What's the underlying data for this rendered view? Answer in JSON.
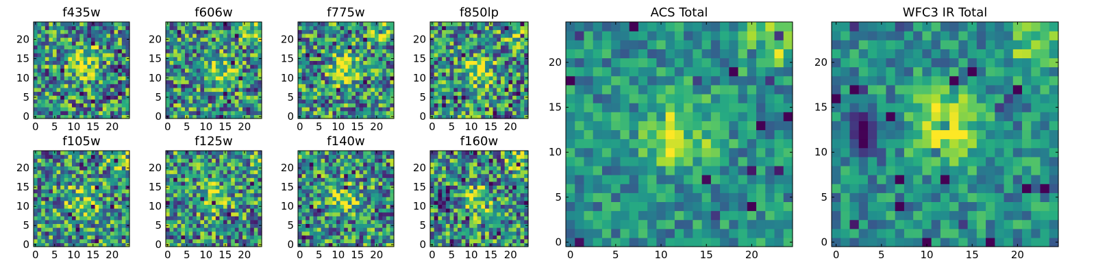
{
  "chart_data": {
    "type": "heatmap",
    "colormap": "viridis",
    "grid_size": 25,
    "panels": [
      {
        "title": "f435w",
        "xticks": [
          "0",
          "5",
          "10",
          "15",
          "20"
        ],
        "yticks": [
          "0",
          "5",
          "10",
          "15",
          "20"
        ],
        "xlim": [
          0,
          24
        ],
        "ylim": [
          0,
          24
        ],
        "center": [
          13,
          14
        ],
        "bright_corner": "none",
        "dark_patch": "none"
      },
      {
        "title": "f606w",
        "xticks": [
          "0",
          "5",
          "10",
          "15",
          "20"
        ],
        "yticks": [
          "0",
          "5",
          "10",
          "15",
          "20"
        ],
        "xlim": [
          0,
          24
        ],
        "ylim": [
          0,
          24
        ],
        "center": [
          13,
          12
        ],
        "bright_corner": "top-right",
        "dark_patch": "none"
      },
      {
        "title": "f775w",
        "xticks": [
          "0",
          "5",
          "10",
          "15",
          "20"
        ],
        "yticks": [
          "0",
          "5",
          "10",
          "15",
          "20"
        ],
        "xlim": [
          0,
          24
        ],
        "ylim": [
          0,
          24
        ],
        "center": [
          12,
          12
        ],
        "bright_corner": "top-right",
        "dark_patch": "none"
      },
      {
        "title": "f850lp",
        "xticks": [
          "0",
          "5",
          "10",
          "15",
          "20"
        ],
        "yticks": [
          "0",
          "5",
          "10",
          "15",
          "20"
        ],
        "xlim": [
          0,
          24
        ],
        "ylim": [
          0,
          24
        ],
        "center": [
          12,
          12
        ],
        "bright_corner": "top-right",
        "dark_patch": "none"
      },
      {
        "title": "ACS Total",
        "xticks": [
          "0",
          "5",
          "10",
          "15",
          "20"
        ],
        "yticks": [
          "0",
          "5",
          "10",
          "15",
          "20"
        ],
        "xlim": [
          0,
          24
        ],
        "ylim": [
          0,
          24
        ],
        "center": [
          12,
          12
        ],
        "bright_corner": "top-right",
        "dark_patch": "none"
      },
      {
        "title": "f105w",
        "xticks": [
          "0",
          "5",
          "10",
          "15",
          "20"
        ],
        "yticks": [
          "0",
          "5",
          "10",
          "15",
          "20"
        ],
        "xlim": [
          0,
          24
        ],
        "ylim": [
          0,
          24
        ],
        "center": [
          12,
          11
        ],
        "bright_corner": "top-right",
        "dark_patch": "none"
      },
      {
        "title": "f125w",
        "xticks": [
          "0",
          "5",
          "10",
          "15",
          "20"
        ],
        "yticks": [
          "0",
          "5",
          "10",
          "15",
          "20"
        ],
        "xlim": [
          0,
          24
        ],
        "ylim": [
          0,
          24
        ],
        "center": [
          12,
          12
        ],
        "bright_corner": "top-right",
        "dark_patch": "none"
      },
      {
        "title": "f140w",
        "xticks": [
          "0",
          "5",
          "10",
          "15",
          "20"
        ],
        "yticks": [
          "0",
          "5",
          "10",
          "15",
          "20"
        ],
        "xlim": [
          0,
          24
        ],
        "ylim": [
          0,
          24
        ],
        "center": [
          12,
          12
        ],
        "bright_corner": "none",
        "dark_patch": "none"
      },
      {
        "title": "f160w",
        "xticks": [
          "0",
          "5",
          "10",
          "15",
          "20"
        ],
        "yticks": [
          "0",
          "5",
          "10",
          "15",
          "20"
        ],
        "xlim": [
          0,
          24
        ],
        "ylim": [
          0,
          24
        ],
        "center": [
          11,
          12
        ],
        "bright_corner": "top-right",
        "dark_patch": "left"
      },
      {
        "title": "WFC3 IR Total",
        "xticks": [
          "0",
          "5",
          "10",
          "15",
          "20"
        ],
        "yticks": [
          "0",
          "5",
          "10",
          "15",
          "20"
        ],
        "xlim": [
          0,
          24
        ],
        "ylim": [
          0,
          24
        ],
        "center": [
          12,
          13
        ],
        "bright_corner": "top-right",
        "dark_patch": "left"
      }
    ],
    "grid": false,
    "legend": "none"
  }
}
